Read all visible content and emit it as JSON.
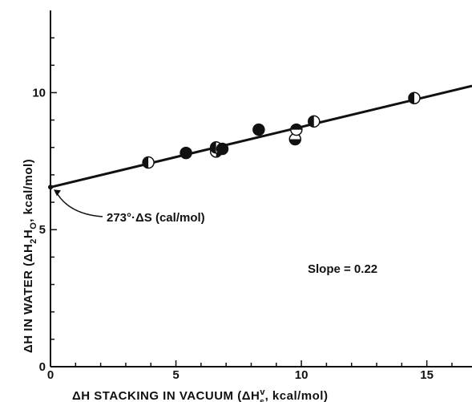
{
  "chart_data": {
    "type": "scatter",
    "title": "",
    "xlabel": "ΔH STACKING IN VACUUM (ΔH",
    "xlabel_super": "v",
    "xlabel_sub": "s",
    "xlabel_tail": ", kcal/mol)",
    "ylabel": "ΔH IN WATER (ΔH",
    "ylabel_sub": "2",
    "ylabel_mid": "H",
    "ylabel_sub2": "O",
    "ylabel_tail": ", kcal/mol)",
    "xlim": [
      0,
      16.8
    ],
    "ylim": [
      0,
      13
    ],
    "x_ticks": [
      0,
      5,
      10,
      15
    ],
    "x_tick_labels": [
      "0",
      "5",
      "10",
      "15"
    ],
    "y_ticks": [
      0,
      5,
      10
    ],
    "y_tick_labels": [
      "0",
      "5",
      "10"
    ],
    "grid": false,
    "points": [
      {
        "x": 3.9,
        "y": 7.45,
        "marker": "half-left"
      },
      {
        "x": 5.4,
        "y": 7.8,
        "marker": "filled"
      },
      {
        "x": 6.6,
        "y": 7.85,
        "marker": "half-right"
      },
      {
        "x": 6.6,
        "y": 8.0,
        "marker": "half-left"
      },
      {
        "x": 6.85,
        "y": 7.95,
        "marker": "filled"
      },
      {
        "x": 8.3,
        "y": 8.65,
        "marker": "filled"
      },
      {
        "x": 9.75,
        "y": 8.3,
        "marker": "half-bottom"
      },
      {
        "x": 9.8,
        "y": 8.65,
        "marker": "half-top"
      },
      {
        "x": 10.5,
        "y": 8.95,
        "marker": "half-left"
      },
      {
        "x": 14.5,
        "y": 9.8,
        "marker": "half-left"
      }
    ],
    "fit_line": {
      "slope": 0.22,
      "intercept": 6.55,
      "x_range": [
        0,
        16.8
      ]
    },
    "annotations": [
      {
        "text": "273°·ΔS (cal/mol)",
        "target_x": 0,
        "target_y": 6.55
      },
      {
        "text": "Slope = 0.22"
      }
    ]
  }
}
